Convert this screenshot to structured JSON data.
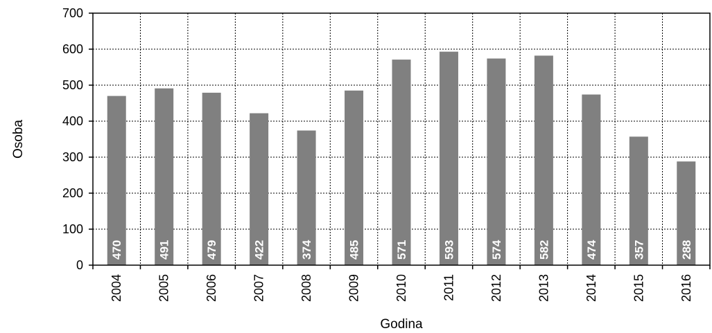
{
  "chart_data": {
    "type": "bar",
    "categories": [
      "2004",
      "2005",
      "2006",
      "2007",
      "2008",
      "2009",
      "2010",
      "2011",
      "2012",
      "2013",
      "2014",
      "2015",
      "2016"
    ],
    "values": [
      470,
      491,
      479,
      422,
      374,
      485,
      571,
      593,
      574,
      582,
      474,
      357,
      288
    ],
    "xlabel": "Godina",
    "ylabel": "Osoba",
    "ylim": [
      0,
      700
    ],
    "yticks": [
      0,
      100,
      200,
      300,
      400,
      500,
      600,
      700
    ],
    "grid": "dotted",
    "bar_color": "#808080",
    "data_label_color": "#ffffff",
    "data_labels": "inside-bottom-rotated"
  }
}
